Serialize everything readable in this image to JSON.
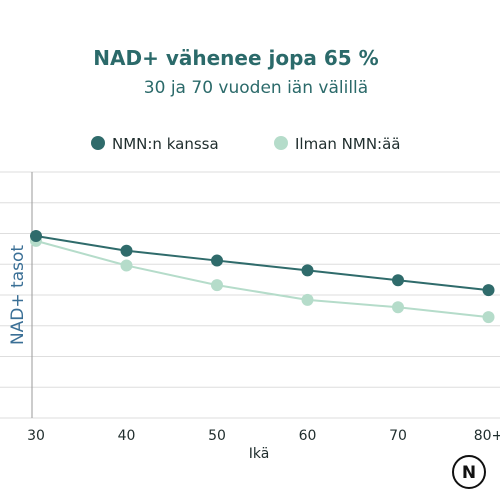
{
  "chart_data": {
    "type": "line",
    "title": "NAD+ vähenee jopa 65 %",
    "subtitle": "30 ja 70 vuoden iän välillä",
    "xlabel": "Ikä",
    "ylabel": "NAD+ tasot",
    "categories": [
      "30",
      "40",
      "50",
      "60",
      "70",
      "80+"
    ],
    "ylim": [
      0,
      10
    ],
    "grid": true,
    "legend_position": "top-center",
    "series": [
      {
        "name": "NMN:n kanssa",
        "color": "#2f6b6b",
        "values": [
          7.4,
          6.8,
          6.4,
          6.0,
          5.6,
          5.2
        ]
      },
      {
        "name": "Ilman NMN:ää",
        "color": "#b5dcca",
        "values": [
          7.2,
          6.2,
          5.4,
          4.8,
          4.5,
          4.1
        ]
      }
    ]
  },
  "logo": {
    "letter": "N",
    "icon": "n-logo-icon"
  }
}
